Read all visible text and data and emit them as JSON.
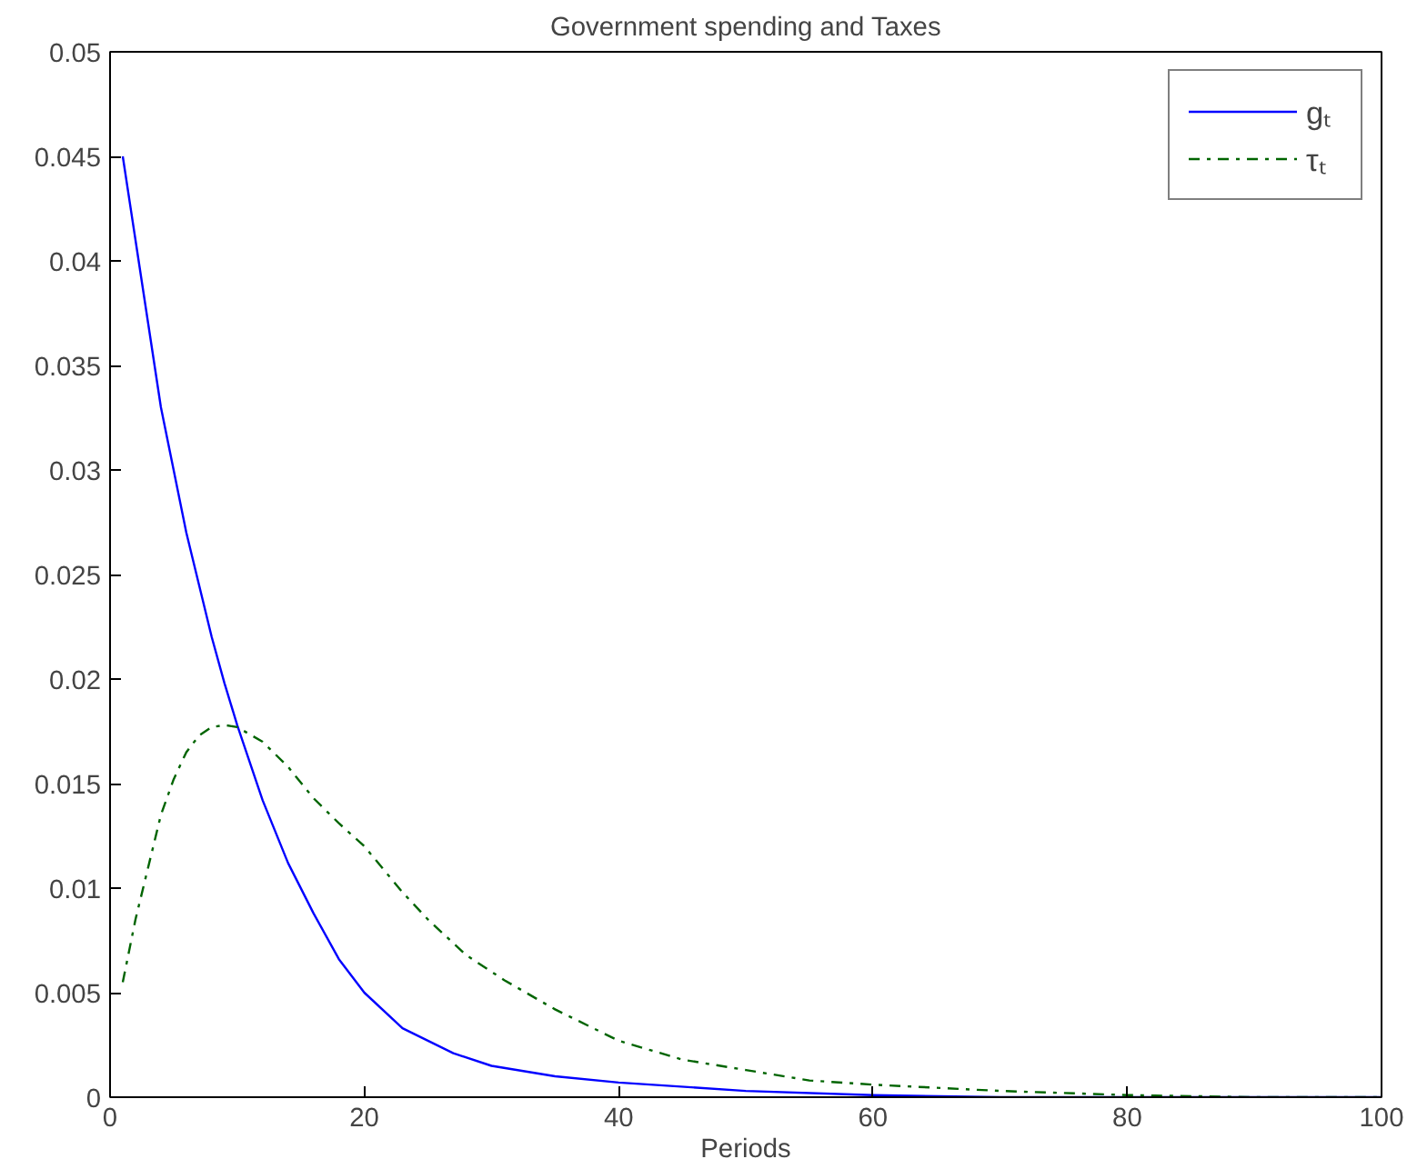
{
  "chart_data": {
    "type": "line",
    "title": "Government spending and Taxes",
    "xlabel": "Periods",
    "xlim": [
      0,
      100
    ],
    "ylim": [
      0,
      0.05
    ],
    "xticks": [
      0,
      20,
      40,
      60,
      80,
      100
    ],
    "yticks": [
      0,
      0.005,
      0.01,
      0.015,
      0.02,
      0.025,
      0.03,
      0.035,
      0.04,
      0.045,
      0.05
    ],
    "grid": false,
    "legend": "top right",
    "marker": "none",
    "series": [
      {
        "name": "gₜ",
        "color": "#0000ff",
        "line_style": "solid",
        "x": [
          1,
          2,
          3,
          4,
          5,
          6,
          7,
          8,
          9,
          10,
          12,
          14,
          16,
          18,
          20,
          23,
          27,
          30,
          35,
          40,
          50,
          60,
          70,
          80,
          100
        ],
        "values": [
          0.045,
          0.041,
          0.037,
          0.033,
          0.03,
          0.027,
          0.0245,
          0.022,
          0.0198,
          0.0178,
          0.0142,
          0.0112,
          0.0088,
          0.0066,
          0.005,
          0.0033,
          0.0021,
          0.0015,
          0.001,
          0.0007,
          0.0003,
          0.0001,
          0,
          0,
          0
        ]
      },
      {
        "name": "τₜ",
        "color": "#006400",
        "line_style": "dashdot",
        "x": [
          1,
          2,
          3,
          4,
          5,
          6,
          7,
          8,
          9,
          10,
          12,
          14,
          16,
          18,
          20,
          23,
          25,
          28,
          31,
          35,
          40,
          45,
          50,
          55,
          60,
          70,
          80,
          90,
          100
        ],
        "values": [
          0.0055,
          0.0085,
          0.011,
          0.0135,
          0.0152,
          0.0165,
          0.0173,
          0.0177,
          0.0178,
          0.0177,
          0.017,
          0.0158,
          0.0143,
          0.0131,
          0.012,
          0.0098,
          0.0085,
          0.0068,
          0.0056,
          0.0042,
          0.0027,
          0.0018,
          0.0013,
          0.0008,
          0.0006,
          0.0003,
          0.0001,
          0,
          0
        ]
      }
    ]
  }
}
